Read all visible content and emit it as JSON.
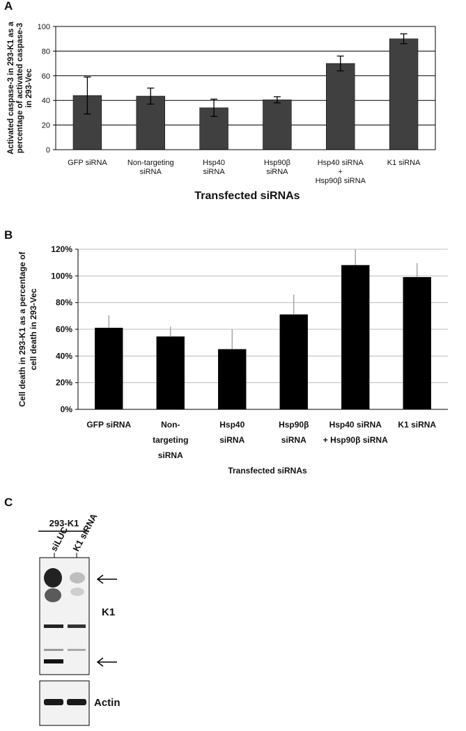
{
  "chart_data": [
    {
      "type": "bar",
      "panel": "A",
      "ylabel": "Activated caspase-3 in 293-K1 as a\npercentage of activated caspase-3\nin 293-Vec",
      "xlabel": "Transfected siRNAs",
      "categories": [
        "GFP siRNA",
        "Non-targeting\nsiRNA",
        "Hsp40\nsiRNA",
        "Hsp90β\nsiRNA",
        "Hsp40 siRNA\n+\nHsp90β siRNA",
        "K1 siRNA"
      ],
      "values": [
        44,
        43.5,
        34,
        40.5,
        70,
        90
      ],
      "errors": [
        15,
        6.5,
        7,
        2.5,
        6,
        4
      ],
      "color": "#404040",
      "ylim": [
        0,
        100
      ],
      "yticks": [
        0,
        20,
        40,
        60,
        80,
        100
      ],
      "grid": true
    },
    {
      "type": "bar",
      "panel": "B",
      "ylabel": "Cell death in 293-K1 as a percentage of\ncell death in 293-Vec",
      "xlabel": "Transfected siRNAs",
      "categories": [
        "GFP siRNA",
        "Non-\ntargeting\nsiRNA",
        "Hsp40\nsiRNA",
        "Hsp90β\nsiRNA",
        "Hsp40 siRNA\n+ Hsp90β siRNA",
        "K1 siRNA"
      ],
      "values": [
        61,
        54.5,
        45,
        71,
        108,
        99
      ],
      "errors": [
        9.5,
        7.5,
        15,
        15,
        12,
        10.5
      ],
      "color": "#000000",
      "ylim": [
        0,
        120
      ],
      "yticks": [
        {
          "value": 0,
          "label": "0%"
        },
        {
          "value": 20,
          "label": "20%"
        },
        {
          "value": 40,
          "label": "40%"
        },
        {
          "value": 60,
          "label": "60%"
        },
        {
          "value": 80,
          "label": "80%"
        },
        {
          "value": 100,
          "label": "100%"
        },
        {
          "value": 120,
          "label": "120%"
        }
      ],
      "grid": true
    }
  ],
  "blot": {
    "panel": "C",
    "cell_line": "293-K1",
    "lanes": [
      "siLUC",
      "K1 siRNA"
    ],
    "target": "K1",
    "control": "Actin"
  }
}
